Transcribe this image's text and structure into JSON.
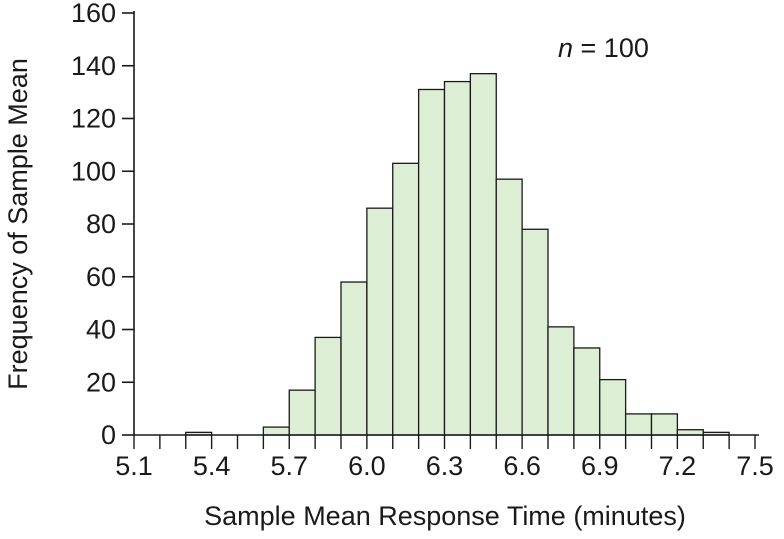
{
  "chart_data": {
    "type": "bar",
    "xlabel": "Sample Mean Response Time (minutes)",
    "ylabel": "Frequency of Sample Mean",
    "annotation": {
      "italic": "n",
      "rest": " = 100"
    },
    "xlim": [
      5.1,
      7.5
    ],
    "ylim": [
      0,
      160
    ],
    "bin_width": 0.1,
    "x_ticks": [
      "5.1",
      "5.4",
      "5.7",
      "6.0",
      "6.3",
      "6.6",
      "6.9",
      "7.2",
      "7.5"
    ],
    "y_ticks": [
      "0",
      "20",
      "40",
      "60",
      "80",
      "100",
      "120",
      "140",
      "160"
    ],
    "bins": [
      {
        "start": 5.3,
        "value": 1
      },
      {
        "start": 5.6,
        "value": 3
      },
      {
        "start": 5.7,
        "value": 17
      },
      {
        "start": 5.8,
        "value": 37
      },
      {
        "start": 5.9,
        "value": 58
      },
      {
        "start": 6.0,
        "value": 86
      },
      {
        "start": 6.1,
        "value": 103
      },
      {
        "start": 6.2,
        "value": 131
      },
      {
        "start": 6.3,
        "value": 134
      },
      {
        "start": 6.4,
        "value": 137
      },
      {
        "start": 6.5,
        "value": 97
      },
      {
        "start": 6.6,
        "value": 78
      },
      {
        "start": 6.7,
        "value": 41
      },
      {
        "start": 6.8,
        "value": 33
      },
      {
        "start": 6.9,
        "value": 21
      },
      {
        "start": 7.0,
        "value": 8
      },
      {
        "start": 7.1,
        "value": 8
      },
      {
        "start": 7.2,
        "value": 2
      },
      {
        "start": 7.3,
        "value": 1
      }
    ],
    "bar_fill": "#dcefd5",
    "bar_stroke": "#1a1a1a",
    "grid": false,
    "legend": "none"
  }
}
